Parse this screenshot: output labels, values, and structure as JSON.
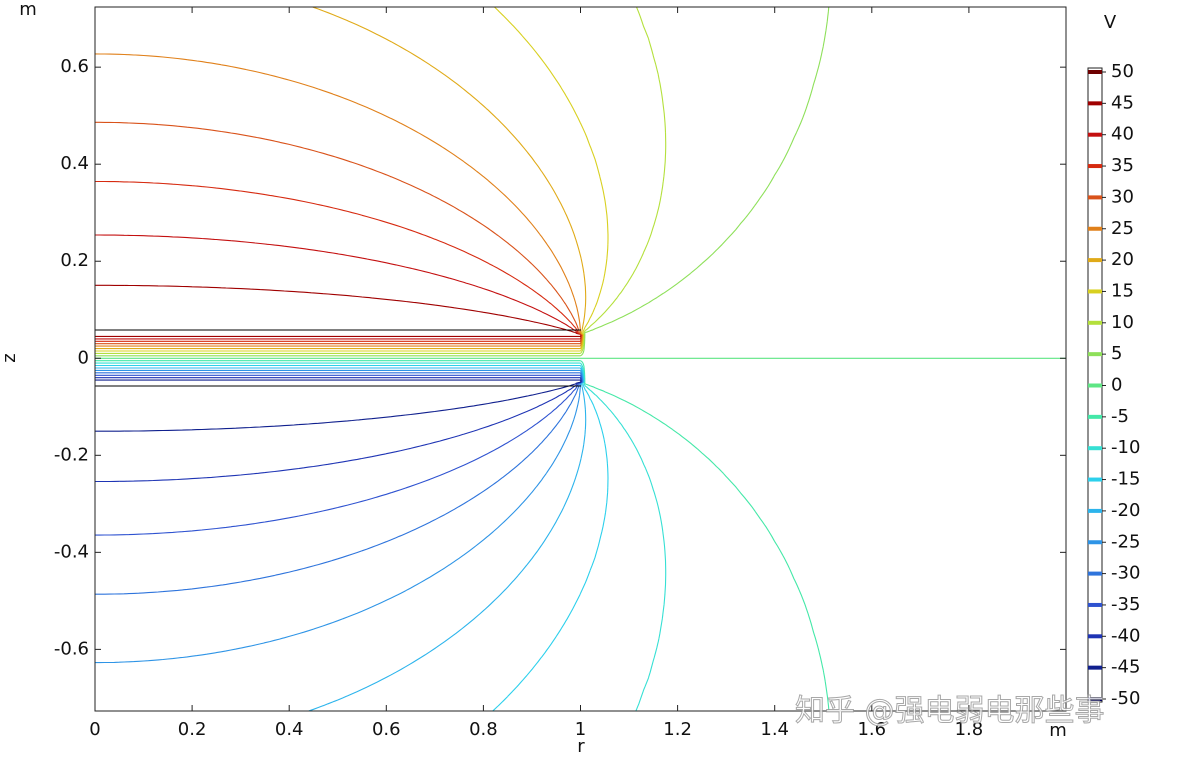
{
  "chart_data": {
    "type": "contour",
    "xlabel": "r",
    "ylabel": "z",
    "x_unit": "m",
    "y_unit": "m",
    "colorbar_unit": "V",
    "xlim": [
      0,
      2
    ],
    "ylim": [
      -0.727,
      0.724
    ],
    "xticks": [
      0,
      0.2,
      0.4,
      0.6,
      0.8,
      1,
      1.2,
      1.4,
      1.6,
      1.8
    ],
    "yticks": [
      -0.6,
      -0.4,
      -0.2,
      0,
      0.2,
      0.4,
      0.6
    ],
    "levels": [
      50,
      45,
      40,
      35,
      30,
      25,
      20,
      15,
      10,
      5,
      0,
      -5,
      -10,
      -15,
      -20,
      -25,
      -30,
      -35,
      -40,
      -45,
      -50
    ],
    "level_colors": [
      "#6e0000",
      "#a00000",
      "#c41010",
      "#d62a10",
      "#d9521a",
      "#e0801a",
      "#e0aa18",
      "#d8d020",
      "#b4e03c",
      "#8ee05a",
      "#5ee684",
      "#44e8a8",
      "#36e0d4",
      "#2cd0ec",
      "#2cb4ec",
      "#2e94e6",
      "#2e74dc",
      "#2e52d0",
      "#1e34b4",
      "#10208e",
      "#000060"
    ],
    "watermark": "知乎 @强电弱电那些事"
  }
}
